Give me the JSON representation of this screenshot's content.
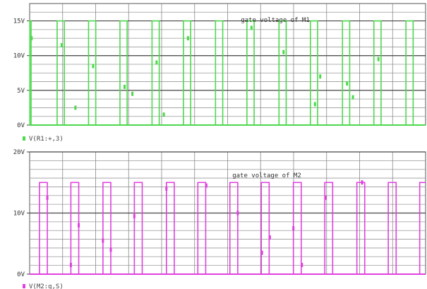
{
  "chart_data": [
    {
      "type": "line",
      "annotation": "gate voltage of M1",
      "legend": "V(R1:+,3)",
      "color": "#4cd94c",
      "ylim": [
        0,
        17.5
      ],
      "yticks": [
        {
          "value": 0,
          "label": "0V"
        },
        {
          "value": 5,
          "label": "5V"
        },
        {
          "value": 10,
          "label": "10V"
        },
        {
          "value": 15,
          "label": "15V"
        }
      ],
      "high": 15,
      "low": 0,
      "pulses": [
        [
          0.3,
          2.2
        ],
        [
          42,
          53
        ],
        [
          90,
          101
        ],
        [
          138,
          149
        ],
        [
          187,
          198
        ],
        [
          235,
          246
        ],
        [
          284,
          295
        ],
        [
          332,
          343
        ],
        [
          381,
          392
        ],
        [
          429,
          440
        ],
        [
          478,
          489
        ],
        [
          526,
          537
        ],
        [
          575,
          586
        ]
      ],
      "x_range": [
        0,
        605
      ],
      "markers": [
        {
          "x": 3,
          "y": 12.5
        },
        {
          "x": 49,
          "y": 11.5
        },
        {
          "x": 70,
          "y": 2.5
        },
        {
          "x": 97,
          "y": 8.5
        },
        {
          "x": 145,
          "y": 5.5
        },
        {
          "x": 157,
          "y": 4.5
        },
        {
          "x": 194,
          "y": 9
        },
        {
          "x": 205,
          "y": 1.5
        },
        {
          "x": 242,
          "y": 12.5
        },
        {
          "x": 339,
          "y": 14
        },
        {
          "x": 388,
          "y": 10.5
        },
        {
          "x": 436,
          "y": 3
        },
        {
          "x": 444,
          "y": 7
        },
        {
          "x": 485,
          "y": 6
        },
        {
          "x": 494,
          "y": 4
        },
        {
          "x": 533,
          "y": 9.5
        }
      ]
    },
    {
      "type": "line",
      "annotation": "gate voltage of M2",
      "legend": "V(M2:g,S)",
      "color": "#e040e0",
      "ylim": [
        0,
        20
      ],
      "yticks": [
        {
          "value": 0,
          "label": "0V"
        },
        {
          "value": 10,
          "label": "10V"
        },
        {
          "value": 20,
          "label": "20V"
        }
      ],
      "high": 15,
      "low": 0,
      "pulses": [
        [
          15,
          27
        ],
        [
          63,
          75
        ],
        [
          112,
          124
        ],
        [
          160,
          172
        ],
        [
          209,
          221
        ],
        [
          257,
          269
        ],
        [
          306,
          318
        ],
        [
          354,
          366
        ],
        [
          403,
          415
        ],
        [
          451,
          463
        ],
        [
          500,
          512
        ],
        [
          548,
          560
        ],
        [
          596,
          605
        ]
      ],
      "x_range": [
        0,
        605
      ],
      "markers": [
        {
          "x": 27,
          "y": 12.5
        },
        {
          "x": 63,
          "y": 1.5
        },
        {
          "x": 75,
          "y": 8
        },
        {
          "x": 112,
          "y": 5.5
        },
        {
          "x": 124,
          "y": 4
        },
        {
          "x": 160,
          "y": 9.5
        },
        {
          "x": 209,
          "y": 14
        },
        {
          "x": 270,
          "y": 14.5
        },
        {
          "x": 318,
          "y": 10
        },
        {
          "x": 355,
          "y": 3.5
        },
        {
          "x": 367,
          "y": 6
        },
        {
          "x": 403,
          "y": 7.5
        },
        {
          "x": 416,
          "y": 1.5
        },
        {
          "x": 452,
          "y": 12.5
        },
        {
          "x": 508,
          "y": 15
        }
      ]
    }
  ]
}
